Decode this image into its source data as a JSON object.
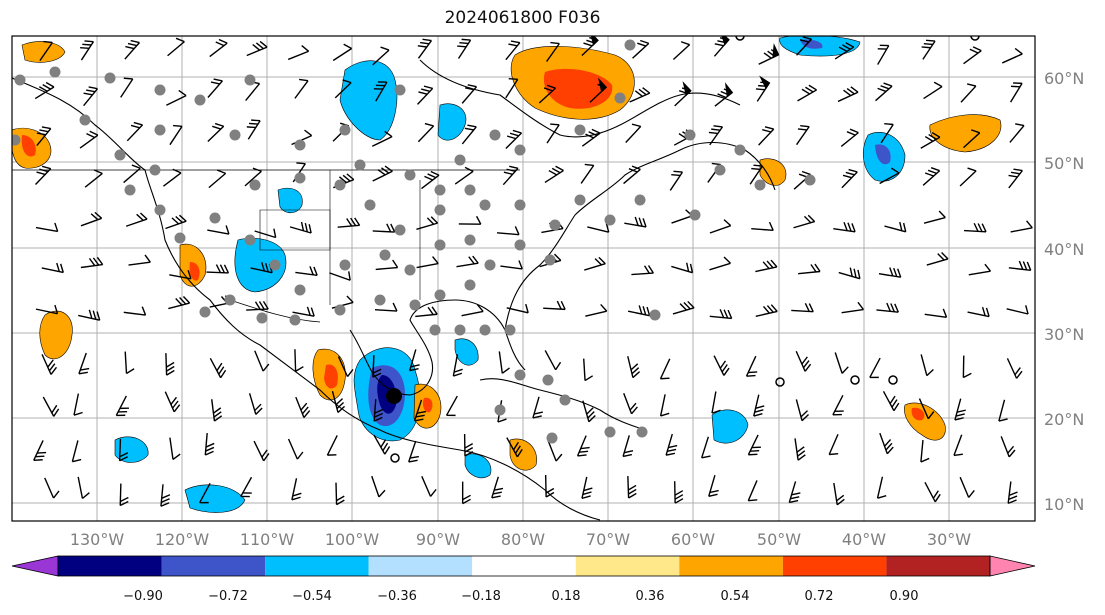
{
  "title": "2024061800 F036",
  "lat_labels": [
    "10°N",
    "20°N",
    "30°N",
    "40°N",
    "50°N",
    "60°N"
  ],
  "lon_labels": [
    "130°W",
    "120°W",
    "110°W",
    "100°W",
    "90°W",
    "80°W",
    "70°W",
    "60°W",
    "50°W",
    "40°W",
    "30°W"
  ],
  "colorbar": {
    "colors": [
      "#9a35d6",
      "#000080",
      "#3d55c9",
      "#00bfff",
      "#b3e0ff",
      "#ffffff",
      "#ffe88a",
      "#ffa500",
      "#ff4000",
      "#b22222",
      "#ff85b0"
    ],
    "ticks": [
      "−0.90",
      "−0.72",
      "−0.54",
      "−0.36",
      "−0.18",
      "0.18",
      "0.36",
      "0.54",
      "0.72",
      "0.90"
    ]
  }
}
